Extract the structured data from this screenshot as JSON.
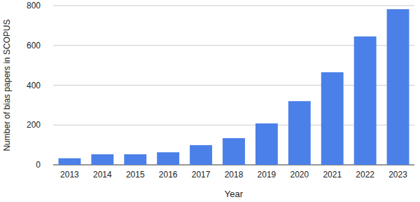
{
  "chart_data": {
    "type": "bar",
    "x_label": "Year",
    "y_label": "Number of bias papers in SCOPUS",
    "categories": [
      "2013",
      "2014",
      "2015",
      "2016",
      "2017",
      "2018",
      "2019",
      "2020",
      "2021",
      "2022",
      "2023"
    ],
    "values": [
      33,
      53,
      53,
      63,
      99,
      134,
      208,
      320,
      465,
      645,
      782
    ],
    "color": "#4a80e8",
    "ylim": [
      0,
      800
    ],
    "yticks": [
      0,
      200,
      400,
      600,
      800
    ],
    "grid": true
  }
}
